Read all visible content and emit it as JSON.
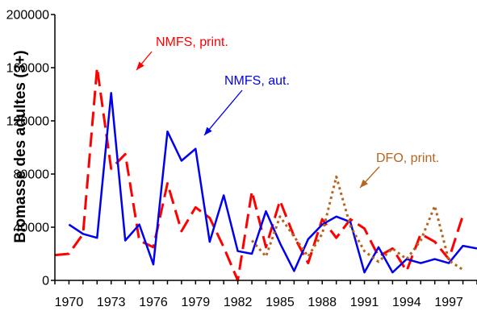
{
  "chart_data": {
    "type": "line",
    "title": "",
    "xlabel": "",
    "ylabel": "Biomasse des adultes (3+)",
    "xlim": [
      1969,
      1999
    ],
    "ylim": [
      0,
      200000
    ],
    "x_ticks": [
      1970,
      1973,
      1976,
      1979,
      1982,
      1985,
      1988,
      1991,
      1994,
      1997
    ],
    "y_ticks": [
      0,
      40000,
      80000,
      120000,
      160000,
      200000
    ],
    "grid": false,
    "legend": "none",
    "annotations": [
      {
        "text": "NMFS, print.",
        "series_index": 0,
        "color": "#ff0000"
      },
      {
        "text": "NMFS, aut.",
        "series_index": 1,
        "color": "#0000ee"
      },
      {
        "text": "DFO, print.",
        "series_index": 2,
        "color": "#b5651d"
      }
    ],
    "series": [
      {
        "line_style": "dashed",
        "color": "#ff0000",
        "x": [
          1969,
          1970,
          1971,
          1972,
          1973,
          1974,
          1975,
          1976,
          1977,
          1978,
          1979,
          1980,
          1981,
          1982,
          1983,
          1984,
          1985,
          1986,
          1987,
          1988,
          1989,
          1990,
          1991,
          1992,
          1993,
          1994,
          1995,
          1996,
          1997,
          1998
        ],
        "y": [
          19000,
          20000,
          35000,
          160000,
          84000,
          95000,
          30000,
          25000,
          73000,
          37000,
          55000,
          47000,
          25000,
          0,
          67000,
          25000,
          60000,
          33000,
          13000,
          46000,
          32000,
          46000,
          39000,
          18000,
          24000,
          7000,
          35000,
          29000,
          16000,
          49000
        ]
      },
      {
        "line_style": "solid",
        "color": "#0000ee",
        "x": [
          1970,
          1971,
          1972,
          1973,
          1974,
          1975,
          1976,
          1977,
          1978,
          1979,
          1980,
          1981,
          1982,
          1983,
          1984,
          1985,
          1986,
          1987,
          1988,
          1989,
          1990,
          1991,
          1992,
          1993,
          1994,
          1995,
          1996,
          1997,
          1998,
          1999
        ],
        "y": [
          42000,
          35000,
          32000,
          141000,
          30000,
          42000,
          12000,
          112000,
          90000,
          99000,
          29000,
          64000,
          22000,
          20000,
          52000,
          28000,
          7000,
          31000,
          42000,
          48000,
          44000,
          6000,
          25000,
          6000,
          16000,
          13000,
          16000,
          13000,
          26000,
          24000
        ]
      },
      {
        "line_style": "dotted",
        "color": "#b5651d",
        "x": [
          1983,
          1984,
          1985,
          1986,
          1987,
          1988,
          1989,
          1990,
          1991,
          1992,
          1993,
          1994,
          1995,
          1996,
          1997,
          1998
        ],
        "y": [
          30000,
          18000,
          48000,
          33000,
          18000,
          35000,
          78000,
          41000,
          22000,
          14000,
          24000,
          16000,
          30000,
          56000,
          15000,
          8000
        ]
      }
    ]
  }
}
